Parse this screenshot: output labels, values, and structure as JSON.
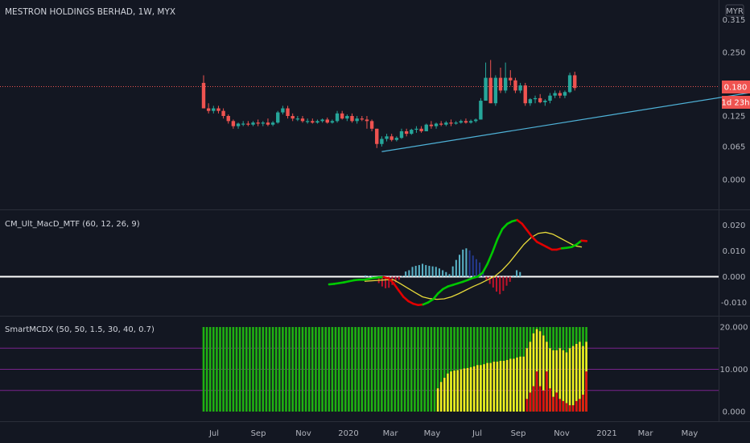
{
  "header": {
    "title": "MESTRON HOLDINGS BERHAD, 1W, MYX",
    "currency_badge": "MYR"
  },
  "price_badges": {
    "last_price": "0.180",
    "countdown": "1d 23h"
  },
  "colors": {
    "up": "#26a69a",
    "down": "#ef5350",
    "trendline": "#4fb3d9",
    "bg": "#131722",
    "macd_up": "#00c800",
    "macd_down": "#e00000",
    "signal": "#e6d93a",
    "hist_pos": "#5ab4c8",
    "hist_pos_dim": "#243a8f",
    "hist_neg": "#c0122a",
    "smart_green": "#1fb012",
    "smart_yellow": "#f0f020",
    "smart_red": "#e01010",
    "band": "#9c27b0"
  },
  "x_axis_labels": [
    "Jul",
    "Sep",
    "Nov",
    "2020",
    "Mar",
    "May",
    "Jul",
    "Sep",
    "Nov",
    "2021",
    "Mar",
    "May"
  ],
  "chart_data": [
    {
      "type": "candlestick",
      "title": "MESTRON HOLDINGS BERHAD, 1W, MYX",
      "y_ticks": [
        "0.315",
        "0.250",
        "0.180",
        "0.125",
        "0.065",
        "0.000"
      ],
      "last_price": 0.18,
      "candles": [
        {
          "o": 0.19,
          "h": 0.205,
          "c": 0.14,
          "l": 0.14
        },
        {
          "o": 0.14,
          "h": 0.15,
          "c": 0.135,
          "l": 0.13
        },
        {
          "o": 0.135,
          "h": 0.145,
          "c": 0.14,
          "l": 0.13
        },
        {
          "o": 0.14,
          "h": 0.145,
          "c": 0.135,
          "l": 0.13
        },
        {
          "o": 0.135,
          "h": 0.14,
          "c": 0.125,
          "l": 0.12
        },
        {
          "o": 0.125,
          "h": 0.128,
          "c": 0.115,
          "l": 0.11
        },
        {
          "o": 0.115,
          "h": 0.118,
          "c": 0.105,
          "l": 0.1
        },
        {
          "o": 0.105,
          "h": 0.112,
          "c": 0.11,
          "l": 0.1
        },
        {
          "o": 0.11,
          "h": 0.115,
          "c": 0.11,
          "l": 0.105
        },
        {
          "o": 0.11,
          "h": 0.115,
          "c": 0.108,
          "l": 0.105
        },
        {
          "o": 0.108,
          "h": 0.115,
          "c": 0.112,
          "l": 0.105
        },
        {
          "o": 0.112,
          "h": 0.118,
          "c": 0.11,
          "l": 0.105
        },
        {
          "o": 0.11,
          "h": 0.115,
          "c": 0.112,
          "l": 0.105
        },
        {
          "o": 0.112,
          "h": 0.12,
          "c": 0.108,
          "l": 0.105
        },
        {
          "o": 0.108,
          "h": 0.115,
          "c": 0.112,
          "l": 0.105
        },
        {
          "o": 0.112,
          "h": 0.135,
          "c": 0.132,
          "l": 0.11
        },
        {
          "o": 0.132,
          "h": 0.145,
          "c": 0.14,
          "l": 0.128
        },
        {
          "o": 0.14,
          "h": 0.145,
          "c": 0.125,
          "l": 0.12
        },
        {
          "o": 0.125,
          "h": 0.13,
          "c": 0.12,
          "l": 0.115
        },
        {
          "o": 0.12,
          "h": 0.125,
          "c": 0.12,
          "l": 0.115
        },
        {
          "o": 0.12,
          "h": 0.125,
          "c": 0.115,
          "l": 0.112
        },
        {
          "o": 0.115,
          "h": 0.12,
          "c": 0.115,
          "l": 0.11
        },
        {
          "o": 0.115,
          "h": 0.12,
          "c": 0.112,
          "l": 0.11
        },
        {
          "o": 0.112,
          "h": 0.118,
          "c": 0.115,
          "l": 0.11
        },
        {
          "o": 0.115,
          "h": 0.12,
          "c": 0.118,
          "l": 0.112
        },
        {
          "o": 0.118,
          "h": 0.122,
          "c": 0.112,
          "l": 0.11
        },
        {
          "o": 0.112,
          "h": 0.118,
          "c": 0.115,
          "l": 0.11
        },
        {
          "o": 0.115,
          "h": 0.135,
          "c": 0.13,
          "l": 0.112
        },
        {
          "o": 0.13,
          "h": 0.135,
          "c": 0.12,
          "l": 0.118
        },
        {
          "o": 0.12,
          "h": 0.128,
          "c": 0.125,
          "l": 0.115
        },
        {
          "o": 0.125,
          "h": 0.13,
          "c": 0.115,
          "l": 0.112
        },
        {
          "o": 0.115,
          "h": 0.125,
          "c": 0.12,
          "l": 0.11
        },
        {
          "o": 0.12,
          "h": 0.125,
          "c": 0.118,
          "l": 0.115
        },
        {
          "o": 0.118,
          "h": 0.125,
          "c": 0.115,
          "l": 0.1
        },
        {
          "o": 0.115,
          "h": 0.118,
          "c": 0.1,
          "l": 0.095
        },
        {
          "o": 0.1,
          "h": 0.1,
          "c": 0.07,
          "l": 0.062
        },
        {
          "o": 0.07,
          "h": 0.085,
          "c": 0.08,
          "l": 0.065
        },
        {
          "o": 0.08,
          "h": 0.09,
          "c": 0.085,
          "l": 0.075
        },
        {
          "o": 0.085,
          "h": 0.09,
          "c": 0.078,
          "l": 0.075
        },
        {
          "o": 0.078,
          "h": 0.085,
          "c": 0.082,
          "l": 0.075
        },
        {
          "o": 0.082,
          "h": 0.1,
          "c": 0.095,
          "l": 0.08
        },
        {
          "o": 0.095,
          "h": 0.1,
          "c": 0.09,
          "l": 0.085
        },
        {
          "o": 0.09,
          "h": 0.1,
          "c": 0.098,
          "l": 0.088
        },
        {
          "o": 0.098,
          "h": 0.105,
          "c": 0.1,
          "l": 0.092
        },
        {
          "o": 0.1,
          "h": 0.105,
          "c": 0.095,
          "l": 0.092
        },
        {
          "o": 0.095,
          "h": 0.11,
          "c": 0.108,
          "l": 0.095
        },
        {
          "o": 0.108,
          "h": 0.115,
          "c": 0.105,
          "l": 0.1
        },
        {
          "o": 0.105,
          "h": 0.112,
          "c": 0.11,
          "l": 0.1
        },
        {
          "o": 0.11,
          "h": 0.115,
          "c": 0.108,
          "l": 0.105
        },
        {
          "o": 0.108,
          "h": 0.115,
          "c": 0.112,
          "l": 0.105
        },
        {
          "o": 0.112,
          "h": 0.118,
          "c": 0.11,
          "l": 0.105
        },
        {
          "o": 0.11,
          "h": 0.115,
          "c": 0.112,
          "l": 0.108
        },
        {
          "o": 0.112,
          "h": 0.118,
          "c": 0.115,
          "l": 0.11
        },
        {
          "o": 0.115,
          "h": 0.12,
          "c": 0.112,
          "l": 0.11
        },
        {
          "o": 0.112,
          "h": 0.118,
          "c": 0.115,
          "l": 0.11
        },
        {
          "o": 0.115,
          "h": 0.12,
          "c": 0.118,
          "l": 0.112
        },
        {
          "o": 0.118,
          "h": 0.16,
          "c": 0.155,
          "l": 0.118
        },
        {
          "o": 0.155,
          "h": 0.23,
          "c": 0.2,
          "l": 0.155
        },
        {
          "o": 0.2,
          "h": 0.235,
          "c": 0.15,
          "l": 0.15
        },
        {
          "o": 0.15,
          "h": 0.205,
          "c": 0.2,
          "l": 0.145
        },
        {
          "o": 0.2,
          "h": 0.22,
          "c": 0.175,
          "l": 0.17
        },
        {
          "o": 0.175,
          "h": 0.23,
          "c": 0.2,
          "l": 0.17
        },
        {
          "o": 0.2,
          "h": 0.215,
          "c": 0.195,
          "l": 0.185
        },
        {
          "o": 0.195,
          "h": 0.2,
          "c": 0.175,
          "l": 0.17
        },
        {
          "o": 0.175,
          "h": 0.19,
          "c": 0.185,
          "l": 0.17
        },
        {
          "o": 0.185,
          "h": 0.19,
          "c": 0.15,
          "l": 0.145
        },
        {
          "o": 0.15,
          "h": 0.16,
          "c": 0.158,
          "l": 0.145
        },
        {
          "o": 0.158,
          "h": 0.165,
          "c": 0.16,
          "l": 0.15
        },
        {
          "o": 0.16,
          "h": 0.168,
          "c": 0.152,
          "l": 0.15
        },
        {
          "o": 0.152,
          "h": 0.158,
          "c": 0.155,
          "l": 0.145
        },
        {
          "o": 0.155,
          "h": 0.17,
          "c": 0.165,
          "l": 0.15
        },
        {
          "o": 0.165,
          "h": 0.175,
          "c": 0.17,
          "l": 0.16
        },
        {
          "o": 0.17,
          "h": 0.175,
          "c": 0.165,
          "l": 0.16
        },
        {
          "o": 0.165,
          "h": 0.175,
          "c": 0.172,
          "l": 0.16
        },
        {
          "o": 0.172,
          "h": 0.21,
          "c": 0.205,
          "l": 0.17
        },
        {
          "o": 0.205,
          "h": 0.212,
          "c": 0.18,
          "l": 0.175
        }
      ],
      "trendline": {
        "x": [
          36,
          95
        ],
        "y": [
          0.055,
          0.215
        ]
      }
    },
    {
      "type": "line",
      "title": "CM_Ult_MacD_MTF (60, 12, 26, 9)",
      "y_ticks": [
        "0.020",
        "0.010",
        "0.000",
        "-0.010"
      ],
      "macd": [
        -0.003,
        -0.0028,
        -0.0025,
        -0.0022,
        -0.0018,
        -0.0014,
        -0.0012,
        -0.0012,
        -0.0009,
        -0.0005,
        -0.0003,
        -0.0002,
        -0.0006,
        -0.0025,
        -0.0052,
        -0.0078,
        -0.0095,
        -0.0105,
        -0.011,
        -0.0108,
        -0.01,
        -0.0088,
        -0.0065,
        -0.0048,
        -0.0038,
        -0.0032,
        -0.0026,
        -0.002,
        -0.0013,
        -0.0005,
        0.0,
        0.0015,
        0.005,
        0.0095,
        0.0145,
        0.0185,
        0.0205,
        0.0215,
        0.022,
        0.0205,
        0.018,
        0.0155,
        0.0135,
        0.0125,
        0.0115,
        0.0105,
        0.0105,
        0.011,
        0.0112,
        0.0115,
        0.0125,
        0.014,
        0.0138
      ],
      "signal": [
        -0.0018,
        -0.0016,
        -0.0014,
        -0.0012,
        -0.0012,
        -0.0028,
        -0.0045,
        -0.0062,
        -0.0078,
        -0.0085,
        -0.0088,
        -0.0086,
        -0.0078,
        -0.0066,
        -0.0052,
        -0.0038,
        -0.0026,
        -0.0012,
        0.0002,
        0.0025,
        0.0055,
        0.009,
        0.0125,
        0.0152,
        0.0168,
        0.0172,
        0.0165,
        0.015,
        0.0135,
        0.012,
        0.0115
      ],
      "histogram": [
        0.0005,
        0.0003,
        0.0002,
        -0.0008,
        -0.0025,
        -0.0038,
        -0.0045,
        -0.0043,
        -0.0032,
        -0.0022,
        -0.0012,
        0.0003,
        0.002,
        0.0025,
        0.0038,
        0.0042,
        0.0045,
        0.005,
        0.0045,
        0.0042,
        0.004,
        0.0038,
        0.0032,
        0.0025,
        0.0018,
        0.001,
        0.004,
        0.0065,
        0.0085,
        0.0105,
        0.011,
        0.0102,
        0.0082,
        0.0068,
        0.0055,
        0.0015,
        -0.0012,
        -0.0028,
        -0.0042,
        -0.0058,
        -0.0068,
        -0.0055,
        -0.0035,
        -0.002,
        0.0005,
        0.0025,
        0.0018
      ]
    },
    {
      "type": "bar",
      "title": "SmartMCDX (50, 50, 1.5, 30, 40, 0.7)",
      "y_ticks": [
        "20.000",
        "10.000",
        "0.000"
      ],
      "bands": [
        15,
        10,
        5
      ],
      "green": 20,
      "yellow": [
        0,
        0,
        0,
        0,
        0,
        0,
        0,
        0,
        0,
        0,
        0,
        0,
        0,
        0,
        0,
        0,
        0,
        0,
        0,
        0,
        0,
        0,
        0,
        0,
        0,
        0,
        0,
        0,
        0,
        0,
        0,
        0,
        0,
        0,
        0,
        0,
        0,
        0,
        0,
        0,
        0,
        0,
        0,
        0,
        0,
        0,
        0,
        0,
        0,
        0,
        0,
        0,
        0,
        0,
        0,
        0,
        0,
        0,
        0,
        0,
        0,
        0,
        0,
        0,
        0,
        0,
        0,
        0,
        0,
        0,
        0,
        5.5,
        7,
        8,
        9,
        9.5,
        9.7,
        9.8,
        10,
        10.2,
        10.3,
        10.5,
        10.7,
        11,
        11,
        11.2,
        11.5,
        11.5,
        11.8,
        11.8,
        12,
        12,
        12.2,
        12.5,
        12.5,
        12.8,
        13,
        13,
        15,
        16.5,
        18.5,
        19.5,
        19,
        18,
        16.5,
        15,
        14.5,
        14.5,
        15,
        14.5,
        14,
        15,
        15.5,
        16,
        16.5,
        15.5,
        16.5
      ],
      "red": [
        0,
        0,
        0,
        0,
        0,
        0,
        0,
        0,
        0,
        0,
        0,
        0,
        0,
        0,
        0,
        0,
        0,
        0,
        0,
        0,
        0,
        0,
        0,
        0,
        0,
        0,
        0,
        0,
        0,
        0,
        0,
        0,
        0,
        0,
        0,
        0,
        0,
        0,
        0,
        0,
        0,
        0,
        0,
        0,
        0,
        0,
        0,
        0,
        0,
        0,
        0,
        0,
        0,
        0,
        0,
        0,
        0,
        0,
        0,
        0,
        0,
        0,
        0,
        0,
        0,
        0,
        0,
        0,
        0,
        0,
        0,
        0,
        0,
        0,
        0,
        0,
        0,
        0,
        0,
        0,
        0,
        0,
        0,
        0,
        0,
        0,
        0,
        0,
        0,
        0,
        0,
        0,
        0,
        0,
        0,
        0,
        0,
        0,
        3,
        4.5,
        6,
        9.5,
        6,
        5,
        9.5,
        5.5,
        3.5,
        4.5,
        3,
        2.5,
        2,
        1.5,
        1.5,
        2.5,
        3,
        4,
        9.5,
        3.5
      ]
    }
  ]
}
